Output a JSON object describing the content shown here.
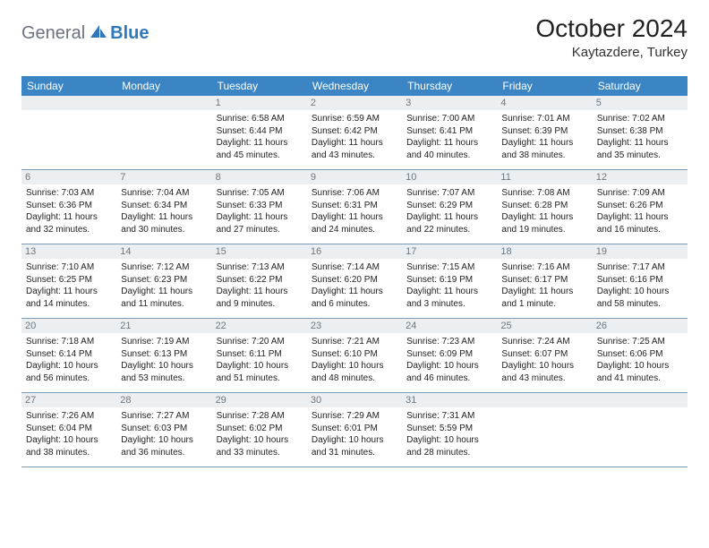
{
  "logo": {
    "text1": "General",
    "text2": "Blue"
  },
  "title": "October 2024",
  "location": "Kaytazdere, Turkey",
  "weekdays": [
    "Sunday",
    "Monday",
    "Tuesday",
    "Wednesday",
    "Thursday",
    "Friday",
    "Saturday"
  ],
  "colors": {
    "header_bg": "#3b85c4",
    "header_text": "#ffffff",
    "daynum_bg": "#eceff1",
    "daynum_text": "#6b7782",
    "row_border": "#7a9bb8",
    "logo_gray": "#6b7280",
    "logo_blue": "#2f78bb"
  },
  "weeks": [
    [
      null,
      null,
      {
        "n": "1",
        "sr": "Sunrise: 6:58 AM",
        "ss": "Sunset: 6:44 PM",
        "d1": "Daylight: 11 hours",
        "d2": "and 45 minutes."
      },
      {
        "n": "2",
        "sr": "Sunrise: 6:59 AM",
        "ss": "Sunset: 6:42 PM",
        "d1": "Daylight: 11 hours",
        "d2": "and 43 minutes."
      },
      {
        "n": "3",
        "sr": "Sunrise: 7:00 AM",
        "ss": "Sunset: 6:41 PM",
        "d1": "Daylight: 11 hours",
        "d2": "and 40 minutes."
      },
      {
        "n": "4",
        "sr": "Sunrise: 7:01 AM",
        "ss": "Sunset: 6:39 PM",
        "d1": "Daylight: 11 hours",
        "d2": "and 38 minutes."
      },
      {
        "n": "5",
        "sr": "Sunrise: 7:02 AM",
        "ss": "Sunset: 6:38 PM",
        "d1": "Daylight: 11 hours",
        "d2": "and 35 minutes."
      }
    ],
    [
      {
        "n": "6",
        "sr": "Sunrise: 7:03 AM",
        "ss": "Sunset: 6:36 PM",
        "d1": "Daylight: 11 hours",
        "d2": "and 32 minutes."
      },
      {
        "n": "7",
        "sr": "Sunrise: 7:04 AM",
        "ss": "Sunset: 6:34 PM",
        "d1": "Daylight: 11 hours",
        "d2": "and 30 minutes."
      },
      {
        "n": "8",
        "sr": "Sunrise: 7:05 AM",
        "ss": "Sunset: 6:33 PM",
        "d1": "Daylight: 11 hours",
        "d2": "and 27 minutes."
      },
      {
        "n": "9",
        "sr": "Sunrise: 7:06 AM",
        "ss": "Sunset: 6:31 PM",
        "d1": "Daylight: 11 hours",
        "d2": "and 24 minutes."
      },
      {
        "n": "10",
        "sr": "Sunrise: 7:07 AM",
        "ss": "Sunset: 6:29 PM",
        "d1": "Daylight: 11 hours",
        "d2": "and 22 minutes."
      },
      {
        "n": "11",
        "sr": "Sunrise: 7:08 AM",
        "ss": "Sunset: 6:28 PM",
        "d1": "Daylight: 11 hours",
        "d2": "and 19 minutes."
      },
      {
        "n": "12",
        "sr": "Sunrise: 7:09 AM",
        "ss": "Sunset: 6:26 PM",
        "d1": "Daylight: 11 hours",
        "d2": "and 16 minutes."
      }
    ],
    [
      {
        "n": "13",
        "sr": "Sunrise: 7:10 AM",
        "ss": "Sunset: 6:25 PM",
        "d1": "Daylight: 11 hours",
        "d2": "and 14 minutes."
      },
      {
        "n": "14",
        "sr": "Sunrise: 7:12 AM",
        "ss": "Sunset: 6:23 PM",
        "d1": "Daylight: 11 hours",
        "d2": "and 11 minutes."
      },
      {
        "n": "15",
        "sr": "Sunrise: 7:13 AM",
        "ss": "Sunset: 6:22 PM",
        "d1": "Daylight: 11 hours",
        "d2": "and 9 minutes."
      },
      {
        "n": "16",
        "sr": "Sunrise: 7:14 AM",
        "ss": "Sunset: 6:20 PM",
        "d1": "Daylight: 11 hours",
        "d2": "and 6 minutes."
      },
      {
        "n": "17",
        "sr": "Sunrise: 7:15 AM",
        "ss": "Sunset: 6:19 PM",
        "d1": "Daylight: 11 hours",
        "d2": "and 3 minutes."
      },
      {
        "n": "18",
        "sr": "Sunrise: 7:16 AM",
        "ss": "Sunset: 6:17 PM",
        "d1": "Daylight: 11 hours",
        "d2": "and 1 minute."
      },
      {
        "n": "19",
        "sr": "Sunrise: 7:17 AM",
        "ss": "Sunset: 6:16 PM",
        "d1": "Daylight: 10 hours",
        "d2": "and 58 minutes."
      }
    ],
    [
      {
        "n": "20",
        "sr": "Sunrise: 7:18 AM",
        "ss": "Sunset: 6:14 PM",
        "d1": "Daylight: 10 hours",
        "d2": "and 56 minutes."
      },
      {
        "n": "21",
        "sr": "Sunrise: 7:19 AM",
        "ss": "Sunset: 6:13 PM",
        "d1": "Daylight: 10 hours",
        "d2": "and 53 minutes."
      },
      {
        "n": "22",
        "sr": "Sunrise: 7:20 AM",
        "ss": "Sunset: 6:11 PM",
        "d1": "Daylight: 10 hours",
        "d2": "and 51 minutes."
      },
      {
        "n": "23",
        "sr": "Sunrise: 7:21 AM",
        "ss": "Sunset: 6:10 PM",
        "d1": "Daylight: 10 hours",
        "d2": "and 48 minutes."
      },
      {
        "n": "24",
        "sr": "Sunrise: 7:23 AM",
        "ss": "Sunset: 6:09 PM",
        "d1": "Daylight: 10 hours",
        "d2": "and 46 minutes."
      },
      {
        "n": "25",
        "sr": "Sunrise: 7:24 AM",
        "ss": "Sunset: 6:07 PM",
        "d1": "Daylight: 10 hours",
        "d2": "and 43 minutes."
      },
      {
        "n": "26",
        "sr": "Sunrise: 7:25 AM",
        "ss": "Sunset: 6:06 PM",
        "d1": "Daylight: 10 hours",
        "d2": "and 41 minutes."
      }
    ],
    [
      {
        "n": "27",
        "sr": "Sunrise: 7:26 AM",
        "ss": "Sunset: 6:04 PM",
        "d1": "Daylight: 10 hours",
        "d2": "and 38 minutes."
      },
      {
        "n": "28",
        "sr": "Sunrise: 7:27 AM",
        "ss": "Sunset: 6:03 PM",
        "d1": "Daylight: 10 hours",
        "d2": "and 36 minutes."
      },
      {
        "n": "29",
        "sr": "Sunrise: 7:28 AM",
        "ss": "Sunset: 6:02 PM",
        "d1": "Daylight: 10 hours",
        "d2": "and 33 minutes."
      },
      {
        "n": "30",
        "sr": "Sunrise: 7:29 AM",
        "ss": "Sunset: 6:01 PM",
        "d1": "Daylight: 10 hours",
        "d2": "and 31 minutes."
      },
      {
        "n": "31",
        "sr": "Sunrise: 7:31 AM",
        "ss": "Sunset: 5:59 PM",
        "d1": "Daylight: 10 hours",
        "d2": "and 28 minutes."
      },
      null,
      null
    ]
  ]
}
